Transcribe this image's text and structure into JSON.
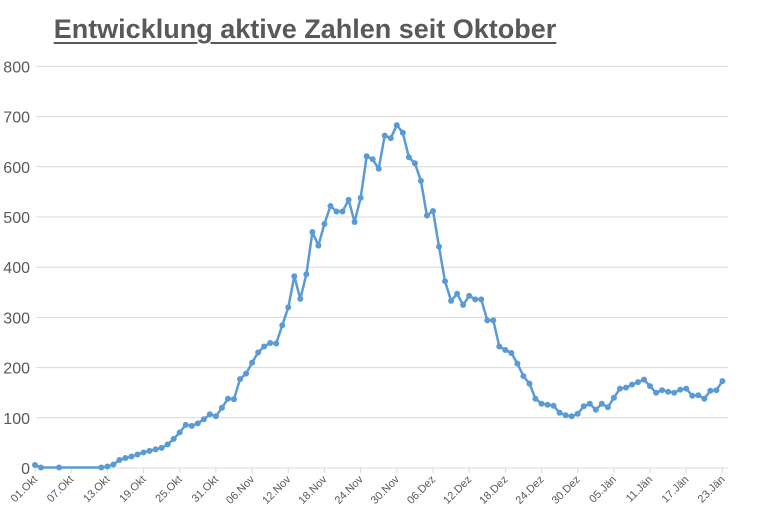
{
  "chart_data": {
    "type": "line",
    "title": "Entwicklung aktive Zahlen seit Oktober",
    "xlabel": "",
    "ylabel": "",
    "ylim": [
      0,
      800
    ],
    "yticks": [
      0,
      100,
      200,
      300,
      400,
      500,
      600,
      700,
      800
    ],
    "grid": true,
    "legend": "none",
    "line_color": "#5B9BD5",
    "x_tick_labels": [
      "01.Okt",
      "07.Okt",
      "13.Okt",
      "19.Okt",
      "25.Okt",
      "31.Okt",
      "06.Nov",
      "12.Nov",
      "18.Nov",
      "24.Nov",
      "30.Nov",
      "06.Dez",
      "12.Dez",
      "18.Dez",
      "24.Dez",
      "30.Dez",
      "05.Jän",
      "11.Jän",
      "17.Jän",
      "23.Jän"
    ],
    "x_day_offset_start": "01.Okt",
    "points": [
      [
        0,
        6
      ],
      [
        1,
        1
      ],
      [
        4,
        1
      ],
      [
        11,
        1
      ],
      [
        12,
        3
      ],
      [
        13,
        7
      ],
      [
        14,
        16
      ],
      [
        15,
        20
      ],
      [
        16,
        23
      ],
      [
        17,
        27
      ],
      [
        18,
        31
      ],
      [
        19,
        34
      ],
      [
        20,
        37
      ],
      [
        21,
        40
      ],
      [
        22,
        47
      ],
      [
        23,
        58
      ],
      [
        24,
        71
      ],
      [
        25,
        86
      ],
      [
        26,
        84
      ],
      [
        27,
        89
      ],
      [
        28,
        97
      ],
      [
        29,
        107
      ],
      [
        30,
        103
      ],
      [
        31,
        120
      ],
      [
        32,
        138
      ],
      [
        33,
        137
      ],
      [
        34,
        177
      ],
      [
        35,
        188
      ],
      [
        36,
        210
      ],
      [
        37,
        230
      ],
      [
        38,
        242
      ],
      [
        39,
        249
      ],
      [
        40,
        248
      ],
      [
        41,
        284
      ],
      [
        42,
        320
      ],
      [
        43,
        382
      ],
      [
        44,
        337
      ],
      [
        45,
        386
      ],
      [
        46,
        470
      ],
      [
        47,
        443
      ],
      [
        48,
        486
      ],
      [
        49,
        522
      ],
      [
        50,
        511
      ],
      [
        51,
        511
      ],
      [
        52,
        534
      ],
      [
        53,
        490
      ],
      [
        54,
        538
      ],
      [
        55,
        621
      ],
      [
        56,
        615
      ],
      [
        57,
        596
      ],
      [
        58,
        662
      ],
      [
        59,
        657
      ],
      [
        60,
        683
      ],
      [
        61,
        668
      ],
      [
        62,
        619
      ],
      [
        63,
        607
      ],
      [
        64,
        572
      ],
      [
        65,
        503
      ],
      [
        66,
        512
      ],
      [
        67,
        441
      ],
      [
        68,
        372
      ],
      [
        69,
        333
      ],
      [
        70,
        347
      ],
      [
        71,
        325
      ],
      [
        72,
        343
      ],
      [
        73,
        336
      ],
      [
        74,
        336
      ],
      [
        75,
        294
      ],
      [
        76,
        294
      ],
      [
        77,
        242
      ],
      [
        78,
        235
      ],
      [
        79,
        229
      ],
      [
        80,
        208
      ],
      [
        81,
        183
      ],
      [
        82,
        168
      ],
      [
        83,
        138
      ],
      [
        84,
        128
      ],
      [
        85,
        126
      ],
      [
        86,
        124
      ],
      [
        87,
        110
      ],
      [
        88,
        105
      ],
      [
        89,
        103
      ],
      [
        90,
        108
      ],
      [
        91,
        123
      ],
      [
        92,
        128
      ],
      [
        93,
        116
      ],
      [
        94,
        128
      ],
      [
        95,
        121
      ],
      [
        96,
        140
      ],
      [
        97,
        158
      ],
      [
        98,
        160
      ],
      [
        99,
        166
      ],
      [
        100,
        171
      ],
      [
        101,
        176
      ],
      [
        102,
        163
      ],
      [
        103,
        150
      ],
      [
        104,
        155
      ],
      [
        105,
        152
      ],
      [
        106,
        150
      ],
      [
        107,
        156
      ],
      [
        108,
        158
      ],
      [
        109,
        144
      ],
      [
        110,
        145
      ],
      [
        111,
        138
      ],
      [
        112,
        154
      ],
      [
        113,
        155
      ],
      [
        114,
        173
      ]
    ]
  }
}
